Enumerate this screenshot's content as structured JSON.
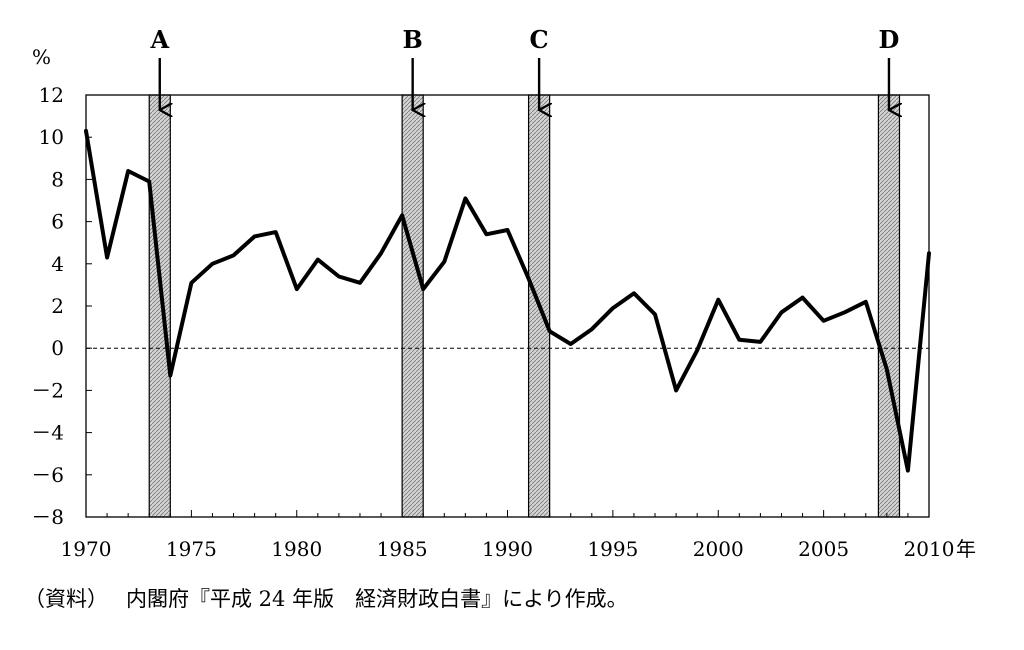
{
  "chart_data": {
    "type": "line",
    "ylabel": "%",
    "x_unit": "年",
    "ylim": [
      -8,
      12
    ],
    "xlim": [
      1970,
      2010
    ],
    "yticks": [
      12,
      10,
      8,
      6,
      4,
      2,
      0,
      -2,
      -4,
      -6,
      -8
    ],
    "ytick_labels": [
      "12",
      "10",
      "8",
      "6",
      "4",
      "2",
      "0",
      "－2",
      "－4",
      "－6",
      "－8"
    ],
    "xticks": [
      1970,
      1975,
      1980,
      1985,
      1990,
      1995,
      2000,
      2005,
      2010
    ],
    "xtick_labels": [
      "1970",
      "1975",
      "1980",
      "1985",
      "1990",
      "1995",
      "2000",
      "2005",
      "2010"
    ],
    "x": [
      1970,
      1971,
      1972,
      1973,
      1974,
      1975,
      1976,
      1977,
      1978,
      1979,
      1980,
      1981,
      1982,
      1983,
      1984,
      1985,
      1986,
      1987,
      1988,
      1989,
      1990,
      1991,
      1992,
      1993,
      1994,
      1995,
      1996,
      1997,
      1998,
      1999,
      2000,
      2001,
      2002,
      2003,
      2004,
      2005,
      2006,
      2007,
      2008,
      2009,
      2010
    ],
    "values": [
      10.3,
      4.3,
      8.4,
      7.9,
      -1.3,
      3.1,
      4.0,
      4.4,
      5.3,
      5.5,
      2.8,
      4.2,
      3.4,
      3.1,
      4.5,
      6.3,
      2.8,
      4.1,
      7.1,
      5.4,
      5.6,
      3.3,
      0.8,
      0.2,
      0.9,
      1.9,
      2.6,
      1.6,
      -2.0,
      -0.1,
      2.3,
      0.4,
      0.3,
      1.7,
      2.4,
      1.3,
      1.7,
      2.2,
      -1.0,
      -5.8,
      4.5
    ],
    "zero_line": "dashed",
    "periods": [
      {
        "label": "A",
        "start": 1973.0,
        "end": 1974.0
      },
      {
        "label": "B",
        "start": 1985.0,
        "end": 1986.0
      },
      {
        "label": "C",
        "start": 1991.0,
        "end": 1992.0
      },
      {
        "label": "D",
        "start": 2007.6,
        "end": 2008.6
      }
    ],
    "grid": false,
    "colors": {
      "line": "#000000",
      "band_fill": "#c8c8c8",
      "band_stroke": "#000000"
    }
  },
  "source_note": {
    "prefix": "（資料）",
    "text": "内閣府『平成 24 年版　経済財政白書』により作成。"
  }
}
